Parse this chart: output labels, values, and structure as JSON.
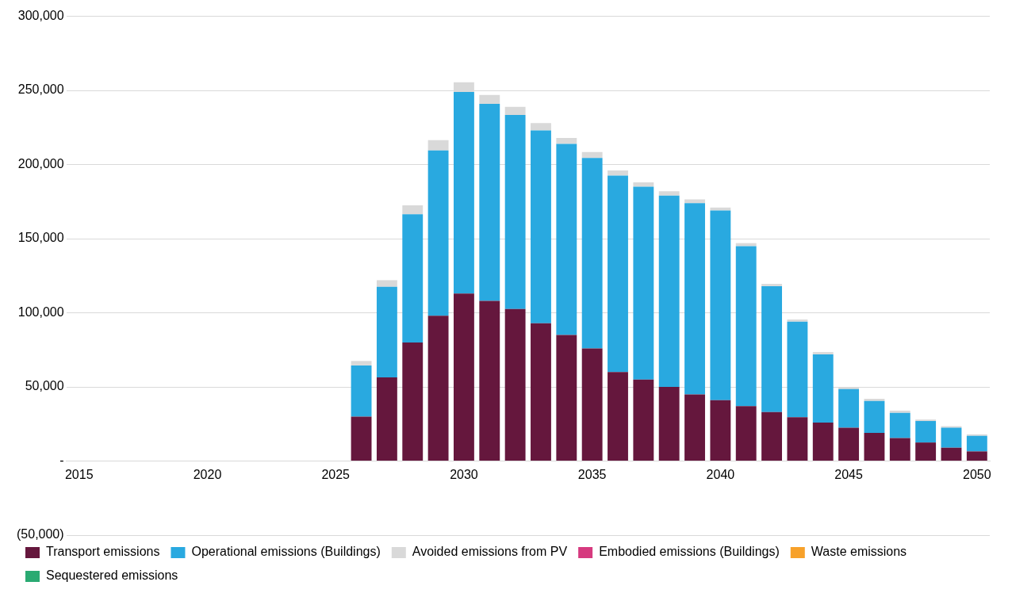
{
  "chart_data": {
    "type": "bar",
    "stacked": true,
    "categories": [
      "2015",
      null,
      null,
      null,
      null,
      "2020",
      null,
      null,
      null,
      null,
      "2025",
      null,
      null,
      null,
      null,
      "2030",
      null,
      null,
      null,
      null,
      "2035",
      null,
      null,
      null,
      null,
      "2040",
      null,
      null,
      null,
      null,
      "2045",
      null,
      null,
      null,
      null,
      "2050"
    ],
    "series": [
      {
        "name": "Transport emissions",
        "color": "#65173d",
        "values": [
          null,
          null,
          null,
          null,
          null,
          null,
          null,
          null,
          null,
          null,
          null,
          30000,
          56500,
          80000,
          98000,
          113000,
          108000,
          102500,
          93000,
          85000,
          76000,
          60000,
          55000,
          50000,
          45000,
          41000,
          37000,
          33000,
          29500,
          26000,
          22500,
          19000,
          15500,
          12500,
          9000,
          6500
        ]
      },
      {
        "name": "Operational emissions (Buildings)",
        "color": "#29a9e0",
        "values": [
          null,
          null,
          null,
          null,
          null,
          null,
          null,
          null,
          null,
          null,
          null,
          34500,
          61000,
          86500,
          111500,
          136000,
          133000,
          131000,
          130000,
          129000,
          128500,
          132500,
          130000,
          129000,
          129000,
          128000,
          108000,
          85000,
          64500,
          46000,
          26000,
          21500,
          17000,
          14500,
          13500,
          10500
        ]
      },
      {
        "name": "Avoided emissions from PV",
        "color": "#d9d9d9",
        "values": [
          null,
          null,
          null,
          null,
          null,
          null,
          null,
          null,
          null,
          null,
          null,
          3000,
          4500,
          6000,
          7000,
          6500,
          6000,
          5500,
          5000,
          4000,
          4000,
          3500,
          3000,
          3000,
          2500,
          2000,
          2000,
          1500,
          1500,
          1500,
          1500,
          1500,
          1500,
          1000,
          1000,
          1000
        ]
      },
      {
        "name": "Embodied emissions (Buildings)",
        "color": "#d63a7f",
        "values": [
          null,
          null,
          null,
          null,
          null,
          null,
          null,
          null,
          null,
          null,
          null,
          null,
          null,
          null,
          null,
          null,
          null,
          null,
          null,
          null,
          null,
          null,
          null,
          null,
          null,
          null,
          null,
          null,
          null,
          null,
          null,
          null,
          null,
          null,
          null,
          null
        ]
      },
      {
        "name": "Waste emissions",
        "color": "#f7a12a",
        "values": [
          null,
          null,
          null,
          null,
          null,
          null,
          null,
          null,
          null,
          null,
          null,
          null,
          null,
          null,
          null,
          null,
          null,
          null,
          null,
          null,
          null,
          null,
          null,
          null,
          null,
          null,
          null,
          null,
          null,
          null,
          null,
          null,
          null,
          null,
          null,
          null
        ]
      },
      {
        "name": "Sequestered emissions",
        "color": "#2aaa72",
        "values": [
          null,
          null,
          null,
          null,
          null,
          null,
          null,
          null,
          null,
          null,
          null,
          null,
          null,
          null,
          null,
          null,
          null,
          null,
          null,
          null,
          null,
          null,
          null,
          null,
          null,
          null,
          null,
          null,
          null,
          null,
          null,
          null,
          null,
          null,
          null,
          null
        ]
      }
    ],
    "ylim": [
      -50000,
      300000
    ],
    "yticks": [
      {
        "value": -50000,
        "label": "(50,000)"
      },
      {
        "value": 0,
        "label": "-"
      },
      {
        "value": 50000,
        "label": "50,000"
      },
      {
        "value": 100000,
        "label": "100,000"
      },
      {
        "value": 150000,
        "label": "150,000"
      },
      {
        "value": 200000,
        "label": "200,000"
      },
      {
        "value": 250000,
        "label": "250,000"
      },
      {
        "value": 300000,
        "label": "300,000"
      }
    ],
    "grid": "y",
    "legend": "bottom left"
  }
}
